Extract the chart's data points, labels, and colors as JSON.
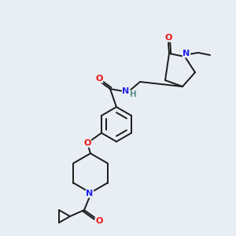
{
  "background_color": "#e8eef4",
  "bond_color": "#1a1a1a",
  "atom_colors": {
    "O": "#ee1111",
    "N": "#2222ee",
    "H": "#5a9090",
    "C": "#1a1a1a"
  },
  "figsize": [
    3.0,
    3.0
  ],
  "dpi": 100,
  "lw": 1.4
}
